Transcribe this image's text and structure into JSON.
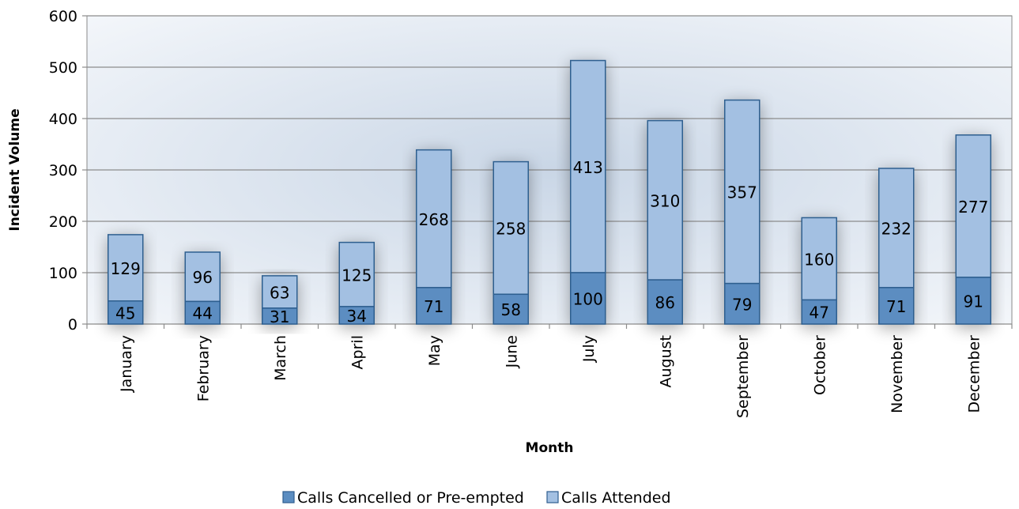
{
  "chart_data": {
    "type": "bar",
    "stacked": true,
    "categories": [
      "January",
      "February",
      "March",
      "April",
      "May",
      "June",
      "July",
      "August",
      "September",
      "October",
      "November",
      "December"
    ],
    "series": [
      {
        "name": "Calls Cancelled or Pre-empted",
        "values": [
          45,
          44,
          31,
          34,
          71,
          58,
          100,
          86,
          79,
          47,
          71,
          91
        ],
        "color": "#5b8dc1"
      },
      {
        "name": "Calls Attended",
        "values": [
          129,
          96,
          63,
          125,
          268,
          258,
          413,
          310,
          357,
          160,
          232,
          277
        ],
        "color": "#a3c0e2"
      }
    ],
    "title": "",
    "xlabel": "Month",
    "ylabel": "Incident Volume",
    "ylim": [
      0,
      600
    ],
    "yticks": [
      "0",
      "100",
      "200",
      "300",
      "400",
      "500",
      "600"
    ],
    "grid": true,
    "legend_position": "bottom",
    "plot_background": "#dde6f1",
    "border_color": "#2f5e8f"
  }
}
